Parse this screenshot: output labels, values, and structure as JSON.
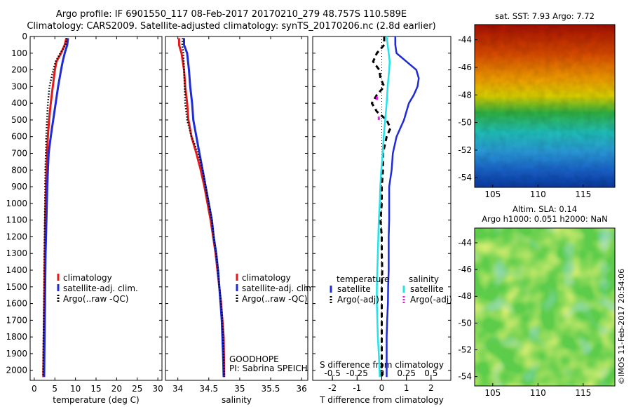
{
  "header": {
    "line1": "Argo profile: IF 6901550_117 08-Feb-2017 20170210_279 48.757S 110.589E",
    "line2": "Climatology: CARS2009. Satellite-adjusted climatology: synTS_20170206.nc (2.8d earlier)"
  },
  "colors": {
    "climatology": "#e41a1c",
    "satellite": "#1e2bd6",
    "argo": "#000000",
    "satellite_salinity": "#22e3ea",
    "argo_salinity": "#e619e6"
  },
  "chart_data": [
    {
      "type": "line",
      "xlabel": "temperature (deg C)",
      "xlim": [
        -1,
        31
      ],
      "ylim": [
        2060,
        0
      ],
      "xticks": [
        "0",
        "5",
        "10",
        "15",
        "20",
        "25",
        "30"
      ],
      "yticks": [
        "0",
        "100",
        "200",
        "300",
        "400",
        "500",
        "600",
        "700",
        "800",
        "900",
        "1000",
        "1100",
        "1200",
        "1300",
        "1400",
        "1500",
        "1600",
        "1700",
        "1800",
        "1900",
        "2000"
      ],
      "legend": [
        "climatology",
        "satellite-adj. clim.",
        "Argo(..raw -QC)"
      ],
      "series": [
        {
          "name": "climatology",
          "y": [
            10,
            50,
            100,
            150,
            200,
            300,
            400,
            500,
            600,
            700,
            800,
            900,
            1000,
            1100,
            1200,
            1300,
            1400,
            1500,
            1600,
            1700,
            1800,
            1900,
            2040
          ],
          "x": [
            7.8,
            7.4,
            6.5,
            5.4,
            5.0,
            4.5,
            4.0,
            3.6,
            3.3,
            3.1,
            2.95,
            2.85,
            2.75,
            2.65,
            2.6,
            2.55,
            2.5,
            2.45,
            2.4,
            2.35,
            2.3,
            2.25,
            2.2
          ]
        },
        {
          "name": "satellite-adj. clim.",
          "y": [
            10,
            50,
            100,
            150,
            200,
            300,
            400,
            500,
            600,
            700,
            800,
            900,
            1000,
            1100,
            1200,
            1300,
            1400,
            1500,
            1600,
            1700,
            1800,
            1900,
            2040
          ],
          "x": [
            8.2,
            8.0,
            7.4,
            6.9,
            6.5,
            5.8,
            5.2,
            4.6,
            4.0,
            3.5,
            3.3,
            3.15,
            3.05,
            2.95,
            2.85,
            2.75,
            2.7,
            2.65,
            2.6,
            2.55,
            2.5,
            2.45,
            2.4
          ]
        },
        {
          "name": "Argo(..raw -QC)",
          "y": [
            10,
            50,
            100,
            150,
            200,
            300,
            400,
            500,
            600,
            700,
            800,
            900,
            1000,
            1100,
            1200,
            1300,
            1400,
            1500,
            1600,
            1700,
            1800,
            1900,
            2040
          ],
          "x": [
            7.9,
            7.6,
            6.3,
            5.2,
            4.6,
            3.7,
            3.3,
            3.1,
            2.9,
            2.8,
            2.7,
            2.65,
            2.6,
            2.55,
            2.5,
            2.45,
            2.4,
            2.4,
            2.35,
            2.3,
            2.25,
            2.2,
            2.15
          ]
        }
      ]
    },
    {
      "type": "line",
      "xlabel": "salinity",
      "xlim": [
        33.8,
        36.1
      ],
      "ylim": [
        2060,
        0
      ],
      "xticks": [
        "34",
        "34.5",
        "35",
        "35.5",
        "36"
      ],
      "legend": [
        "climatology",
        "satellite-adj. clim.",
        "Argo(..raw -QC)"
      ],
      "annotation": [
        "GOODHOPE",
        "PI: Sabrina SPEICH"
      ],
      "series": [
        {
          "name": "climatology",
          "y": [
            10,
            50,
            100,
            200,
            300,
            400,
            500,
            600,
            700,
            800,
            900,
            1000,
            1100,
            1200,
            1300,
            1400,
            1500,
            1600,
            1700,
            1800,
            1900,
            2040
          ],
          "x": [
            34.02,
            34.02,
            34.06,
            34.1,
            34.12,
            34.15,
            34.17,
            34.22,
            34.3,
            34.37,
            34.43,
            34.48,
            34.53,
            34.57,
            34.61,
            34.64,
            34.67,
            34.7,
            34.72,
            34.74,
            34.745,
            34.75
          ]
        },
        {
          "name": "satellite-adj. clim.",
          "y": [
            10,
            50,
            100,
            200,
            300,
            400,
            500,
            600,
            700,
            800,
            900,
            1000,
            1100,
            1200,
            1300,
            1400,
            1500,
            1600,
            1700,
            1800,
            1900,
            2040
          ],
          "x": [
            34.1,
            34.1,
            34.15,
            34.18,
            34.2,
            34.23,
            34.25,
            34.3,
            34.35,
            34.4,
            34.45,
            34.5,
            34.55,
            34.58,
            34.62,
            34.65,
            34.67,
            34.69,
            34.71,
            34.72,
            34.73,
            34.74
          ]
        },
        {
          "name": "Argo(..raw -QC)",
          "y": [
            10,
            50,
            100,
            200,
            300,
            400,
            500,
            600,
            700,
            800,
            900,
            1000,
            1100,
            1200,
            1300,
            1400,
            1500,
            1600,
            1700,
            1800,
            1900,
            2040
          ],
          "x": [
            34.08,
            34.07,
            34.09,
            34.1,
            34.11,
            34.12,
            34.15,
            34.22,
            34.33,
            34.4,
            34.45,
            34.5,
            34.55,
            34.58,
            34.62,
            34.65,
            34.67,
            34.7,
            34.72,
            34.73,
            34.74,
            34.75
          ]
        }
      ]
    },
    {
      "type": "line",
      "xlabel": "T difference from climatology",
      "xlabel_top": "S difference from climatology",
      "xlim": [
        -2.8,
        2.8
      ],
      "ylim": [
        2060,
        0
      ],
      "xticks": [
        "-2",
        "-1",
        "0",
        "1",
        "2"
      ],
      "xticks_top": [
        "-0.5",
        "-0.25",
        "0",
        "0.25",
        "0.5"
      ],
      "legend_groups": [
        "temperature",
        "salinity"
      ],
      "legend": [
        "satellite",
        "Argo(-adj)",
        "satellite",
        "Argo(-adj)"
      ],
      "series": [
        {
          "name": "satellite",
          "y": [
            0,
            50,
            100,
            150,
            200,
            250,
            300,
            350,
            400,
            500,
            600,
            700,
            800,
            900,
            1000,
            1100,
            1200,
            1300,
            1400,
            1500,
            1600,
            1700,
            1800,
            1900,
            2040
          ],
          "x": [
            0.55,
            0.55,
            0.6,
            1.0,
            1.4,
            1.5,
            1.45,
            1.3,
            1.1,
            0.9,
            0.6,
            0.45,
            0.4,
            0.3,
            0.3,
            0.3,
            0.28,
            0.28,
            0.28,
            0.26,
            0.25,
            0.22,
            0.2,
            0.2,
            0.2
          ]
        },
        {
          "name": "Argo(-adj)",
          "y": [
            0,
            50,
            100,
            150,
            200,
            250,
            300,
            350,
            400,
            450,
            500,
            550,
            600,
            700,
            800,
            900,
            1000,
            1100,
            1200,
            1300,
            1400,
            1500,
            1600,
            1700,
            1800,
            1900,
            2040
          ],
          "x": [
            0.1,
            0.1,
            -0.2,
            -0.35,
            -0.1,
            -0.05,
            0.1,
            -0.2,
            -0.4,
            -0.2,
            0.2,
            0.35,
            0.2,
            0.05,
            0.05,
            0.0,
            0.0,
            -0.05,
            0.0,
            0.0,
            0.02,
            0.0,
            0.0,
            0.0,
            0.0,
            0.0,
            0.0
          ]
        },
        {
          "name": "satellite",
          "y": [
            0,
            50,
            100,
            150,
            200,
            300,
            400,
            500,
            600,
            700,
            800,
            900,
            1000,
            1100,
            1200,
            1300,
            1400,
            1500,
            1600,
            1700,
            1800,
            1900,
            2040
          ],
          "x": [
            0.05,
            0.06,
            0.07,
            0.08,
            0.075,
            0.06,
            0.05,
            0.035,
            0.02,
            0.01,
            -0.005,
            -0.015,
            -0.02,
            -0.03,
            -0.035,
            -0.04,
            -0.045,
            -0.05,
            -0.05,
            -0.045,
            -0.04,
            -0.03,
            -0.02
          ]
        },
        {
          "name": "Argo(-adj)",
          "y": [
            360,
            380,
            480,
            500
          ],
          "x": [
            -0.05,
            -0.05,
            -0.03,
            -0.03
          ]
        }
      ]
    },
    {
      "type": "heatmap",
      "title": "sat. SST: 7.93 Argo: 7.72",
      "xlim": [
        103,
        118.5
      ],
      "ylim": [
        -54.7,
        -42.9
      ],
      "xticks": [
        "105",
        "110",
        "115"
      ],
      "yticks": [
        "-44",
        "-46",
        "-48",
        "-50",
        "-52",
        "-54"
      ]
    },
    {
      "type": "heatmap",
      "title_lines": [
        "Altim. SLA: 0.14",
        "Argo h1000: 0.051 h2000: NaN"
      ],
      "xlim": [
        103,
        118.5
      ],
      "ylim": [
        -54.7,
        -42.9
      ],
      "xticks": [
        "105",
        "110",
        "115"
      ],
      "yticks": [
        "-44",
        "-46",
        "-48",
        "-50",
        "-52",
        "-54"
      ],
      "side_label": "©IMOS 11-Feb-2017 20:54:06"
    }
  ]
}
